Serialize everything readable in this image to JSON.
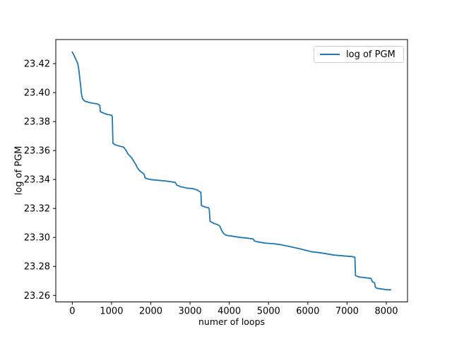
{
  "figure": {
    "background": "#ffffff"
  },
  "chart_data": {
    "type": "line",
    "title": "",
    "xlabel": "numer of loops",
    "ylabel": "log of PGM",
    "xlim": [
      -420,
      8540
    ],
    "ylim": [
      23.2555,
      23.4366
    ],
    "grid": false,
    "xticks": [
      0,
      1000,
      2000,
      3000,
      4000,
      5000,
      6000,
      7000,
      8000
    ],
    "xtick_labels": [
      "0",
      "1000",
      "2000",
      "3000",
      "4000",
      "5000",
      "6000",
      "7000",
      "8000"
    ],
    "yticks": [
      23.26,
      23.28,
      23.3,
      23.32,
      23.34,
      23.36,
      23.38,
      23.4,
      23.42
    ],
    "ytick_labels": [
      "23.26",
      "23.28",
      "23.30",
      "23.32",
      "23.34",
      "23.36",
      "23.38",
      "23.40",
      "23.42"
    ],
    "legend": {
      "position": "upper right",
      "entries": [
        {
          "label": "log of PGM",
          "color": "#1f77b4"
        }
      ]
    },
    "series": [
      {
        "name": "log of PGM",
        "color": "#1f77b4",
        "line_width": 1.8,
        "x": [
          0,
          50,
          100,
          140,
          158,
          175,
          193,
          211,
          229,
          247,
          265,
          320,
          430,
          520,
          640,
          700,
          715,
          790,
          895,
          1000,
          1020,
          1035,
          1100,
          1225,
          1310,
          1370,
          1420,
          1510,
          1565,
          1620,
          1655,
          1690,
          1745,
          1800,
          1835,
          1855,
          1980,
          2160,
          2360,
          2500,
          2625,
          2665,
          2755,
          2915,
          3075,
          3185,
          3240,
          3275,
          3290,
          3380,
          3470,
          3490,
          3510,
          3600,
          3705,
          3760,
          3795,
          3850,
          3920,
          4050,
          4280,
          4460,
          4605,
          4640,
          4695,
          4910,
          5145,
          5290,
          5540,
          5795,
          6080,
          6350,
          6675,
          6910,
          7125,
          7200,
          7215,
          7305,
          7470,
          7610,
          7650,
          7700,
          7720,
          7755,
          7880,
          8025,
          8115
        ],
        "y": [
          23.428,
          23.4254,
          23.4224,
          23.42,
          23.4176,
          23.4137,
          23.4093,
          23.4054,
          23.4,
          23.3971,
          23.3956,
          23.3941,
          23.3932,
          23.3927,
          23.3922,
          23.3912,
          23.3868,
          23.3859,
          23.3849,
          23.3844,
          23.3834,
          23.365,
          23.3639,
          23.3629,
          23.3624,
          23.36,
          23.3576,
          23.3551,
          23.3527,
          23.3502,
          23.3483,
          23.3468,
          23.3454,
          23.3444,
          23.3434,
          23.341,
          23.34,
          23.3395,
          23.339,
          23.3385,
          23.338,
          23.3361,
          23.3351,
          23.3341,
          23.3337,
          23.3327,
          23.3317,
          23.3312,
          23.322,
          23.321,
          23.3205,
          23.3195,
          23.3112,
          23.3098,
          23.3088,
          23.3078,
          23.3054,
          23.3029,
          23.3015,
          23.301,
          23.3,
          23.2995,
          23.299,
          23.2976,
          23.2971,
          23.2961,
          23.2956,
          23.2951,
          23.2937,
          23.2922,
          23.2902,
          23.2893,
          23.2878,
          23.2873,
          23.2868,
          23.2863,
          23.2737,
          23.2727,
          23.2722,
          23.2717,
          23.2693,
          23.2688,
          23.2659,
          23.2649,
          23.2644,
          23.2639,
          23.2639
        ]
      }
    ],
    "colors": {
      "line": "#1f77b4",
      "spine": "#000000",
      "tick_text": "#000000",
      "legend_border": "#cccccc"
    }
  }
}
